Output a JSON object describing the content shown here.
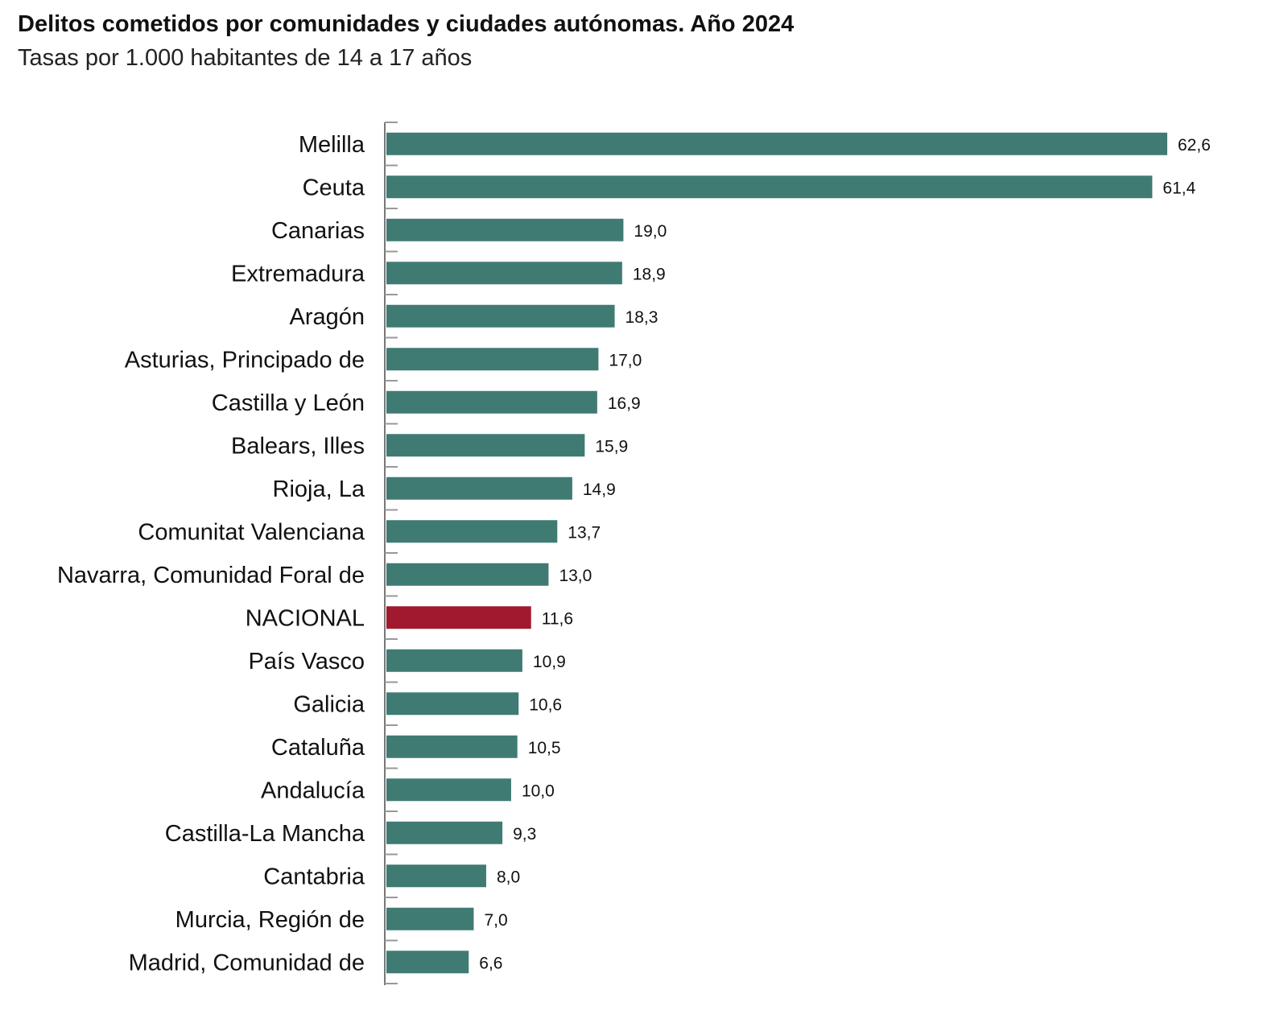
{
  "chart_data": {
    "type": "bar",
    "orientation": "horizontal",
    "title": "Delitos cometidos por comunidades y ciudades autónomas. Año 2024",
    "subtitle": "Tasas por 1.000 habitantes de 14 a 17 años",
    "xlabel": "",
    "ylabel": "",
    "xlim": [
      0,
      62.6
    ],
    "grid": false,
    "categories": [
      "Melilla",
      "Ceuta",
      "Canarias",
      "Extremadura",
      "Aragón",
      "Asturias, Principado de",
      "Castilla y León",
      "Balears, Illes",
      "Rioja, La",
      "Comunitat Valenciana",
      "Navarra, Comunidad Foral de",
      "NACIONAL",
      "País Vasco",
      "Galicia",
      "Cataluña",
      "Andalucía",
      "Castilla-La Mancha",
      "Cantabria",
      "Murcia, Región de",
      "Madrid, Comunidad de"
    ],
    "values": [
      62.6,
      61.4,
      19.0,
      18.9,
      18.3,
      17.0,
      16.9,
      15.9,
      14.9,
      13.7,
      13.0,
      11.6,
      10.9,
      10.6,
      10.5,
      10.0,
      9.3,
      8.0,
      7.0,
      6.6
    ],
    "value_labels": [
      "62,6",
      "61,4",
      "19,0",
      "18,9",
      "18,3",
      "17,0",
      "16,9",
      "15,9",
      "14,9",
      "13,7",
      "13,0",
      "11,6",
      "10,9",
      "10,6",
      "10,5",
      "10,0",
      "9,3",
      "8,0",
      "7,0",
      "6,6"
    ],
    "highlight_category": "NACIONAL",
    "colors": {
      "default": "#3f7b72",
      "highlight": "#a0192e",
      "axis": "#777777"
    }
  }
}
